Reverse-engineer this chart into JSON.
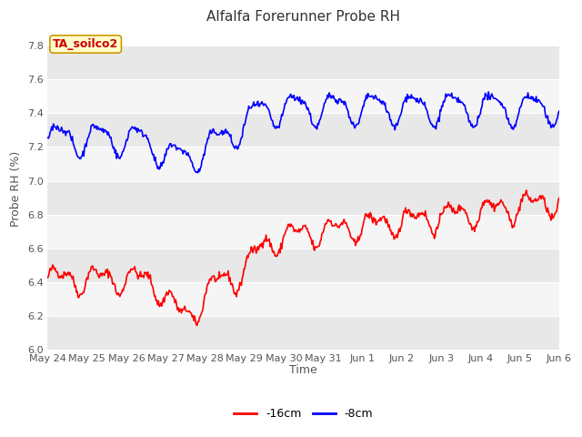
{
  "title": "Alfalfa Forerunner Probe RH",
  "ylabel": "Probe RH (%)",
  "xlabel": "Time",
  "ylim": [
    6.0,
    7.9
  ],
  "yticks": [
    6.0,
    6.2,
    6.4,
    6.6,
    6.8,
    7.0,
    7.2,
    7.4,
    7.6,
    7.8
  ],
  "xtick_labels": [
    "May 24",
    "May 25",
    "May 26",
    "May 27",
    "May 28",
    "May 29",
    "May 30",
    "May 31",
    "Jun 1",
    "Jun 2",
    "Jun 3",
    "Jun 4",
    "Jun 5",
    "Jun 6"
  ],
  "line_red_label": "-16cm",
  "line_blue_label": "-8cm",
  "line_red_color": "#ff0000",
  "line_blue_color": "#0000ff",
  "bg_color": "#ffffff",
  "plot_bg_color": "#ffffff",
  "stripe_dark": "#e8e8e8",
  "stripe_light": "#f5f5f5",
  "annotation_text": "TA_soilco2",
  "annotation_bg": "#ffffcc",
  "annotation_border": "#cc9900",
  "annotation_text_color": "#cc0000",
  "title_fontsize": 11,
  "axis_label_fontsize": 9,
  "tick_fontsize": 8,
  "legend_fontsize": 9,
  "linewidth": 1.2,
  "n_days": 13
}
